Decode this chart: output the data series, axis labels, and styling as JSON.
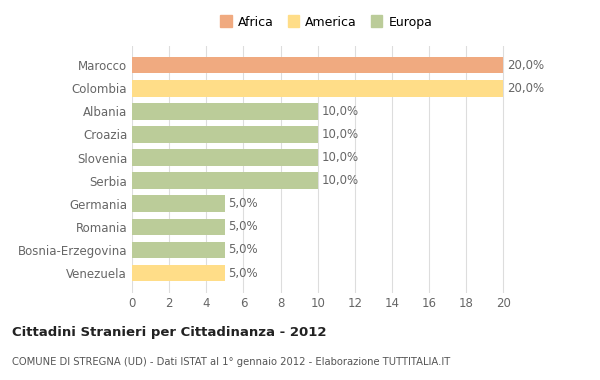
{
  "countries": [
    "Venezuela",
    "Bosnia-Erzegovina",
    "Romania",
    "Germania",
    "Serbia",
    "Slovenia",
    "Croazia",
    "Albania",
    "Colombia",
    "Marocco"
  ],
  "values": [
    5.0,
    5.0,
    5.0,
    5.0,
    10.0,
    10.0,
    10.0,
    10.0,
    20.0,
    20.0
  ],
  "colors": [
    "#FFDD88",
    "#BBCC99",
    "#BBCC99",
    "#BBCC99",
    "#BBCC99",
    "#BBCC99",
    "#BBCC99",
    "#BBCC99",
    "#FFDD88",
    "#F0AA80"
  ],
  "labels": [
    "5,0%",
    "5,0%",
    "5,0%",
    "5,0%",
    "10,0%",
    "10,0%",
    "10,0%",
    "10,0%",
    "20,0%",
    "20,0%"
  ],
  "xlim": [
    0,
    21
  ],
  "xticks": [
    0,
    2,
    4,
    6,
    8,
    10,
    12,
    14,
    16,
    18,
    20
  ],
  "title": "Cittadini Stranieri per Cittadinanza - 2012",
  "subtitle": "COMUNE DI STREGNA (UD) - Dati ISTAT al 1° gennaio 2012 - Elaborazione TUTTITALIA.IT",
  "bar_label_color": "#666666",
  "background_color": "#FFFFFF",
  "grid_color": "#DDDDDD",
  "africa_color": "#F0AA80",
  "america_color": "#FFDD88",
  "europa_color": "#BBCC99",
  "legend_dot_size": 10
}
